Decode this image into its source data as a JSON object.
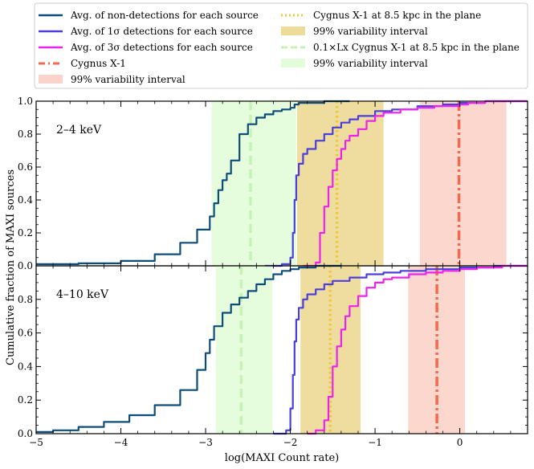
{
  "chart_data": {
    "type": "line",
    "xlabel": "log(MAXI Count rate)",
    "ylabel": "Cumulative fraction of MAXI sources",
    "xlim": [
      -5,
      0.8
    ],
    "ylim": [
      0,
      1.0
    ],
    "xticks": [
      "−5",
      "−4",
      "−3",
      "−2",
      "−1",
      "0"
    ],
    "yticks": [
      "0.0",
      "0.2",
      "0.4",
      "0.6",
      "0.8",
      "1.0"
    ],
    "legend_position": "top",
    "legend": [
      {
        "label": "Avg. of non-detections for each source",
        "color": "#0d4d7a",
        "style": "solid"
      },
      {
        "label": "Avg. of 1σ detections for each source",
        "color": "#4b3fdc",
        "style": "solid"
      },
      {
        "label": "Avg. of 3σ detections for each source",
        "color": "#ee22ee",
        "style": "solid"
      },
      {
        "label": "Cygnus X-1",
        "color": "#f26b50",
        "style": "dashdot"
      },
      {
        "label": "99% variability interval",
        "color": "#f9c9bd",
        "style": "band"
      },
      {
        "label": "Cygnus X-1 at 8.5 kpc in the plane",
        "color": "#f0c63a",
        "style": "dotted"
      },
      {
        "label": "99% variability interval",
        "color": "#e8d27e",
        "style": "band"
      },
      {
        "label": "0.1×Lx Cygnus X-1 at 8.5 kpc in the plane",
        "color": "#c4f3b4",
        "style": "dashed"
      },
      {
        "label": "99% variability interval",
        "color": "#dcfcd2",
        "style": "band"
      }
    ],
    "panels": [
      {
        "label": "2–4 keV",
        "vlines": {
          "cyg": -0.01,
          "cyg85": -1.45,
          "cyg01": -2.47
        },
        "bands": {
          "cyg": [
            -0.47,
            0.55
          ],
          "cyg85": [
            -1.92,
            -0.9
          ],
          "cyg01": [
            -2.93,
            -1.93
          ]
        },
        "series": [
          {
            "key": "nondet",
            "x": [
              -5.0,
              -4.5,
              -4.0,
              -3.6,
              -3.3,
              -3.1,
              -2.95,
              -2.9,
              -2.85,
              -2.8,
              -2.75,
              -2.7,
              -2.6,
              -2.5,
              -2.4,
              -2.3,
              -2.2,
              -2.1,
              -2.0,
              -1.95,
              -1.9,
              -1.6,
              -1.3
            ],
            "y": [
              0.01,
              0.015,
              0.03,
              0.07,
              0.14,
              0.22,
              0.3,
              0.38,
              0.46,
              0.52,
              0.56,
              0.64,
              0.8,
              0.86,
              0.9,
              0.92,
              0.94,
              0.95,
              0.96,
              0.98,
              0.99,
              1.0,
              1.0
            ]
          },
          {
            "key": "det1",
            "x": [
              -2.3,
              -2.1,
              -2.0,
              -1.97,
              -1.95,
              -1.93,
              -1.9,
              -1.85,
              -1.8,
              -1.7,
              -1.6,
              -1.5,
              -1.4,
              -1.3,
              -1.2,
              -1.0,
              -0.8,
              -0.5,
              -0.2,
              0.0,
              0.3,
              0.8
            ],
            "y": [
              0.0,
              0.01,
              0.05,
              0.2,
              0.4,
              0.55,
              0.62,
              0.68,
              0.71,
              0.76,
              0.8,
              0.84,
              0.87,
              0.89,
              0.91,
              0.94,
              0.95,
              0.97,
              0.98,
              0.99,
              1.0,
              1.0
            ]
          },
          {
            "key": "det3",
            "x": [
              -1.85,
              -1.7,
              -1.65,
              -1.6,
              -1.55,
              -1.5,
              -1.45,
              -1.4,
              -1.35,
              -1.3,
              -1.2,
              -1.1,
              -1.0,
              -0.9,
              -0.7,
              -0.5,
              -0.3,
              -0.1,
              0.0,
              0.1,
              0.3,
              0.8
            ],
            "y": [
              0.0,
              0.02,
              0.2,
              0.36,
              0.48,
              0.58,
              0.65,
              0.71,
              0.76,
              0.79,
              0.83,
              0.88,
              0.91,
              0.93,
              0.95,
              0.96,
              0.97,
              0.97,
              0.98,
              0.99,
              1.0,
              1.0
            ]
          }
        ]
      },
      {
        "label": "4–10 keV",
        "vlines": {
          "cyg": -0.27,
          "cyg85": -1.53,
          "cyg01": -2.58
        },
        "bands": {
          "cyg": [
            -0.61,
            0.06
          ],
          "cyg85": [
            -1.88,
            -1.17
          ],
          "cyg01": [
            -2.88,
            -2.21
          ]
        },
        "series": [
          {
            "key": "nondet",
            "x": [
              -5.0,
              -4.8,
              -4.5,
              -4.2,
              -3.9,
              -3.6,
              -3.3,
              -3.1,
              -3.0,
              -2.95,
              -2.9,
              -2.8,
              -2.7,
              -2.6,
              -2.5,
              -2.4,
              -2.3,
              -2.2,
              -2.1,
              -2.0,
              -1.9,
              -1.7,
              -1.4
            ],
            "y": [
              0.01,
              0.02,
              0.04,
              0.07,
              0.11,
              0.17,
              0.26,
              0.38,
              0.48,
              0.56,
              0.64,
              0.72,
              0.77,
              0.81,
              0.85,
              0.89,
              0.92,
              0.95,
              0.97,
              0.98,
              0.99,
              1.0,
              1.0
            ]
          },
          {
            "key": "det1",
            "x": [
              -2.2,
              -2.05,
              -2.0,
              -1.97,
              -1.95,
              -1.93,
              -1.9,
              -1.85,
              -1.8,
              -1.7,
              -1.6,
              -1.5,
              -1.3,
              -1.1,
              -0.9,
              -0.7,
              -0.4,
              0.0,
              0.4,
              0.8
            ],
            "y": [
              0.0,
              0.02,
              0.15,
              0.35,
              0.55,
              0.68,
              0.75,
              0.8,
              0.83,
              0.86,
              0.89,
              0.91,
              0.93,
              0.95,
              0.96,
              0.97,
              0.98,
              0.99,
              1.0,
              1.0
            ]
          },
          {
            "key": "det3",
            "x": [
              -1.8,
              -1.7,
              -1.6,
              -1.55,
              -1.5,
              -1.45,
              -1.4,
              -1.35,
              -1.3,
              -1.2,
              -1.1,
              -1.0,
              -0.9,
              -0.8,
              -0.6,
              -0.4,
              -0.2,
              0.0,
              0.2,
              0.5,
              0.8
            ],
            "y": [
              0.0,
              0.02,
              0.08,
              0.22,
              0.4,
              0.52,
              0.62,
              0.7,
              0.76,
              0.82,
              0.87,
              0.9,
              0.92,
              0.93,
              0.95,
              0.96,
              0.97,
              0.98,
              0.99,
              1.0,
              1.0
            ]
          }
        ]
      }
    ]
  },
  "colors": {
    "nondet": "#0d4d7a",
    "det1": "#4b3fdc",
    "det3": "#ee22ee",
    "cyg": "#f26b50",
    "cyg85": "#f0c63a",
    "cyg01": "#c4f3b4",
    "band_cyg": "#f9c9bd",
    "band_cyg85": "#e8d27e",
    "band_cyg01": "#dcfcd2"
  }
}
